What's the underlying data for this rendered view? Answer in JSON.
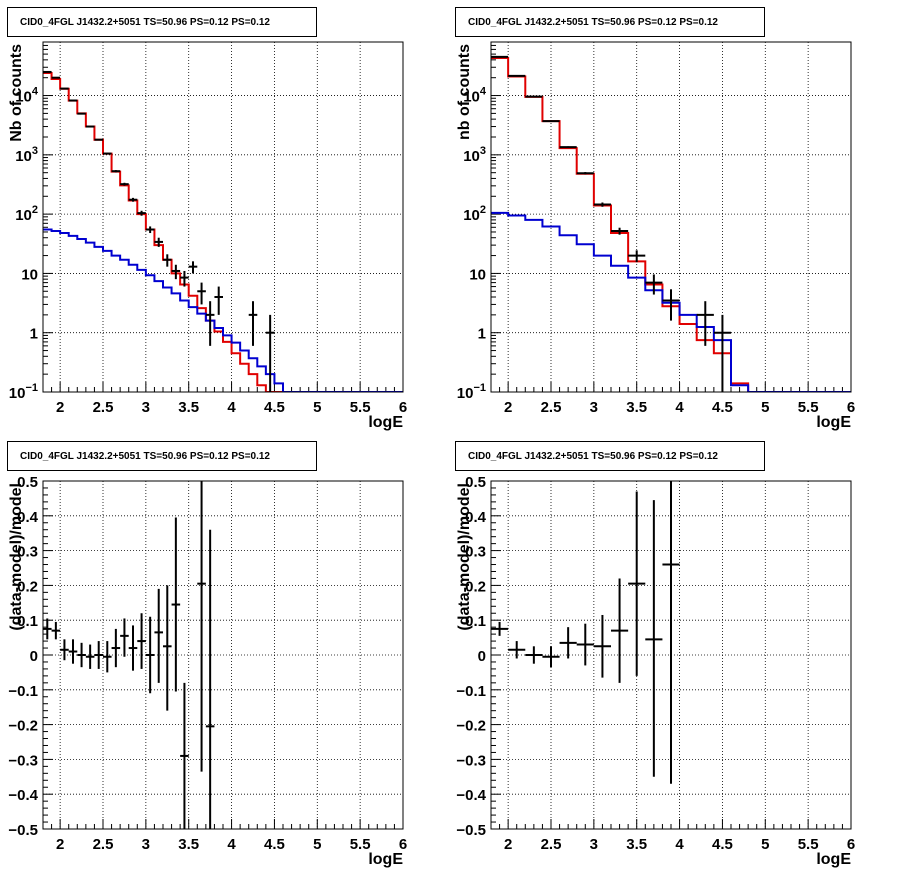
{
  "colors": {
    "data": "#000000",
    "total_model": "#e00000",
    "background_model": "#0000d0",
    "grid": "#000000"
  },
  "chart_data": [
    {
      "type": "step-histogram",
      "title": "CID0_4FGL J1432.2+5051 TS=50.96 PS=0.12 PS=0.12",
      "xlabel": "logE",
      "ylabel": "Nb of counts",
      "xlim": [
        1.8,
        6
      ],
      "ylim": [
        0.1,
        80000
      ],
      "yscale": "log",
      "grid": true,
      "x_ticks": [
        "2",
        "2.5",
        "3",
        "3.5",
        "4",
        "4.5",
        "5",
        "5.5",
        "6"
      ],
      "y_ticks": [
        "10^-1",
        "1",
        "10",
        "10^2",
        "10^3",
        "10^4"
      ],
      "bin_edges": [
        1.8,
        1.9,
        2.0,
        2.1,
        2.2,
        2.3,
        2.4,
        2.5,
        2.6,
        2.7,
        2.8,
        2.9,
        3.0,
        3.1,
        3.2,
        3.3,
        3.4,
        3.5,
        3.6,
        3.7,
        3.8,
        3.9,
        4.0,
        4.1,
        4.2,
        4.3,
        4.4,
        4.5,
        4.6,
        4.7,
        4.8,
        4.9,
        5.0,
        5.1,
        5.2,
        5.3,
        5.4,
        5.5,
        5.6,
        5.7,
        5.8,
        5.9,
        6.0
      ],
      "series": [
        {
          "name": "",
          "color": "#e00000",
          "values": [
            24000,
            19000,
            13000,
            8200,
            5000,
            3000,
            1800,
            1050,
            520,
            305,
            170,
            100,
            55,
            30,
            17,
            10,
            6.5,
            4.2,
            2.6,
            1.6,
            1.05,
            0.7,
            0.45,
            0.3,
            0.2,
            0.13,
            0.1,
            0.1,
            0.1,
            0.1,
            0.1,
            0.1,
            0.1,
            0.1,
            0.1,
            0.1,
            0.1,
            0.1,
            0.1,
            0.1,
            0.1,
            0.1
          ]
        },
        {
          "name": "",
          "color": "#0000d0",
          "values": [
            55,
            52,
            48,
            43,
            38,
            33,
            28,
            24,
            20,
            17,
            14,
            11.5,
            9.3,
            7.4,
            5.8,
            4.6,
            3.5,
            2.7,
            2.1,
            1.6,
            1.2,
            0.9,
            0.68,
            0.5,
            0.37,
            0.27,
            0.2,
            0.14,
            0.1,
            0.1,
            0.1,
            0.1,
            0.1,
            0.1,
            0.1,
            0.1,
            0.1,
            0.1,
            0.1,
            0.1,
            0.1,
            0.1
          ]
        }
      ],
      "points": [
        {
          "x": 1.85,
          "y": 25000,
          "lo": 24800,
          "hi": 25200
        },
        {
          "x": 1.95,
          "y": 20000,
          "lo": 19800,
          "hi": 20200
        },
        {
          "x": 2.05,
          "y": 13100,
          "lo": 12950,
          "hi": 13250
        },
        {
          "x": 2.15,
          "y": 8250,
          "lo": 8150,
          "hi": 8350
        },
        {
          "x": 2.25,
          "y": 4950,
          "lo": 4880,
          "hi": 5020
        },
        {
          "x": 2.35,
          "y": 3000,
          "lo": 2945,
          "hi": 3055
        },
        {
          "x": 2.45,
          "y": 1800,
          "lo": 1760,
          "hi": 1840
        },
        {
          "x": 2.55,
          "y": 1050,
          "lo": 1020,
          "hi": 1080
        },
        {
          "x": 2.65,
          "y": 530,
          "lo": 507,
          "hi": 553
        },
        {
          "x": 2.75,
          "y": 320,
          "lo": 302,
          "hi": 338
        },
        {
          "x": 2.85,
          "y": 175,
          "lo": 162,
          "hi": 188
        },
        {
          "x": 2.95,
          "y": 104,
          "lo": 94,
          "hi": 114
        },
        {
          "x": 3.05,
          "y": 55,
          "lo": 48,
          "hi": 62
        },
        {
          "x": 3.15,
          "y": 34,
          "lo": 28,
          "hi": 40
        },
        {
          "x": 3.25,
          "y": 17,
          "lo": 13,
          "hi": 21
        },
        {
          "x": 3.35,
          "y": 11,
          "lo": 8,
          "hi": 14
        },
        {
          "x": 3.45,
          "y": 8.5,
          "lo": 6,
          "hi": 11
        },
        {
          "x": 3.55,
          "y": 13,
          "lo": 10,
          "hi": 16
        },
        {
          "x": 3.65,
          "y": 5,
          "lo": 3,
          "hi": 7
        },
        {
          "x": 3.75,
          "y": 2,
          "lo": 0.6,
          "hi": 3.4
        },
        {
          "x": 3.85,
          "y": 4,
          "lo": 2,
          "hi": 6
        },
        {
          "x": 4.25,
          "y": 2,
          "lo": 0.6,
          "hi": 3.4
        },
        {
          "x": 4.45,
          "y": 1,
          "lo": 0.1,
          "hi": 2
        }
      ]
    },
    {
      "type": "step-histogram",
      "title": "CID0_4FGL J1432.2+5051 TS=50.96 PS=0.12 PS=0.12",
      "xlabel": "logE",
      "ylabel": "nb of counts",
      "xlim": [
        1.8,
        6
      ],
      "ylim": [
        0.1,
        80000
      ],
      "yscale": "log",
      "grid": true,
      "x_ticks": [
        "2",
        "2.5",
        "3",
        "3.5",
        "4",
        "4.5",
        "5",
        "5.5",
        "6"
      ],
      "y_ticks": [
        "10^-1",
        "1",
        "10",
        "10^2",
        "10^3",
        "10^4"
      ],
      "bin_edges": [
        1.8,
        2.0,
        2.2,
        2.4,
        2.6,
        2.8,
        3.0,
        3.2,
        3.4,
        3.6,
        3.8,
        4.0,
        4.2,
        4.4,
        4.6,
        4.8,
        5.0,
        5.2,
        5.4,
        5.6,
        5.8,
        6.0
      ],
      "series": [
        {
          "name": "",
          "color": "#e00000",
          "values": [
            43000,
            21000,
            9500,
            3700,
            1300,
            480,
            140,
            48,
            16,
            6.5,
            2.8,
            1.4,
            0.75,
            0.45,
            0.14,
            0.1,
            0.1,
            0.1,
            0.1,
            0.1,
            0.1
          ]
        },
        {
          "name": "",
          "color": "#0000d0",
          "values": [
            105,
            95,
            80,
            62,
            44,
            31,
            20,
            13.5,
            8.5,
            5.2,
            3.2,
            2.0,
            1.25,
            0.75,
            0.13,
            0.1,
            0.1,
            0.1,
            0.1,
            0.1,
            0.1
          ]
        }
      ],
      "points": [
        {
          "x": 1.9,
          "y": 45000,
          "lo": 44700,
          "hi": 45300
        },
        {
          "x": 2.1,
          "y": 21500,
          "lo": 21300,
          "hi": 21700
        },
        {
          "x": 2.3,
          "y": 9600,
          "lo": 9500,
          "hi": 9700
        },
        {
          "x": 2.5,
          "y": 3700,
          "lo": 3640,
          "hi": 3760
        },
        {
          "x": 2.7,
          "y": 1350,
          "lo": 1310,
          "hi": 1390
        },
        {
          "x": 2.9,
          "y": 490,
          "lo": 468,
          "hi": 512
        },
        {
          "x": 3.1,
          "y": 145,
          "lo": 133,
          "hi": 157
        },
        {
          "x": 3.3,
          "y": 52,
          "lo": 45,
          "hi": 59
        },
        {
          "x": 3.5,
          "y": 20,
          "lo": 15.5,
          "hi": 24.5
        },
        {
          "x": 3.7,
          "y": 7,
          "lo": 4.4,
          "hi": 9.6
        },
        {
          "x": 3.9,
          "y": 3.5,
          "lo": 1.6,
          "hi": 5.4
        },
        {
          "x": 4.3,
          "y": 2,
          "lo": 0.6,
          "hi": 3.4
        },
        {
          "x": 4.5,
          "y": 1,
          "lo": 0.1,
          "hi": 2
        }
      ]
    },
    {
      "type": "scatter-errorbars",
      "title": "CID0_4FGL J1432.2+5051 TS=50.96 PS=0.12 PS=0.12",
      "xlabel": "logE",
      "ylabel": "(data-model)/model",
      "xlim": [
        1.8,
        6
      ],
      "ylim": [
        -0.5,
        0.5
      ],
      "grid": true,
      "x_ticks": [
        "2",
        "2.5",
        "3",
        "3.5",
        "4",
        "4.5",
        "5",
        "5.5",
        "6"
      ],
      "y_ticks": [
        "−0.5",
        "−0.4",
        "−0.3",
        "−0.2",
        "−0.1",
        "0",
        "0.1",
        "0.2",
        "0.3",
        "0.4",
        "0.5"
      ],
      "points": [
        {
          "x": 1.85,
          "y": 0.075,
          "lo": 0.045,
          "hi": 0.105,
          "xerr": 0.05
        },
        {
          "x": 1.95,
          "y": 0.07,
          "lo": 0.045,
          "hi": 0.095,
          "xerr": 0.05
        },
        {
          "x": 2.05,
          "y": 0.015,
          "lo": -0.015,
          "hi": 0.045,
          "xerr": 0.05
        },
        {
          "x": 2.15,
          "y": 0.01,
          "lo": -0.025,
          "hi": 0.045,
          "xerr": 0.05
        },
        {
          "x": 2.25,
          "y": 0.0,
          "lo": -0.035,
          "hi": 0.035,
          "xerr": 0.05
        },
        {
          "x": 2.35,
          "y": -0.005,
          "lo": -0.04,
          "hi": 0.03,
          "xerr": 0.05
        },
        {
          "x": 2.45,
          "y": 0.0,
          "lo": -0.04,
          "hi": 0.04,
          "xerr": 0.05
        },
        {
          "x": 2.55,
          "y": -0.005,
          "lo": -0.05,
          "hi": 0.04,
          "xerr": 0.05
        },
        {
          "x": 2.65,
          "y": 0.02,
          "lo": -0.035,
          "hi": 0.075,
          "xerr": 0.05
        },
        {
          "x": 2.75,
          "y": 0.055,
          "lo": -0.005,
          "hi": 0.105,
          "xerr": 0.05
        },
        {
          "x": 2.85,
          "y": 0.02,
          "lo": -0.045,
          "hi": 0.085,
          "xerr": 0.05
        },
        {
          "x": 2.95,
          "y": 0.04,
          "lo": -0.04,
          "hi": 0.12,
          "xerr": 0.05
        },
        {
          "x": 3.05,
          "y": 0.0,
          "lo": -0.11,
          "hi": 0.11,
          "xerr": 0.05
        },
        {
          "x": 3.15,
          "y": 0.065,
          "lo": -0.08,
          "hi": 0.19,
          "xerr": 0.05
        },
        {
          "x": 3.25,
          "y": 0.025,
          "lo": -0.16,
          "hi": 0.2,
          "xerr": 0.05
        },
        {
          "x": 3.35,
          "y": 0.145,
          "lo": -0.105,
          "hi": 0.395,
          "xerr": 0.05
        },
        {
          "x": 3.45,
          "y": -0.29,
          "lo": -0.5,
          "hi": -0.08,
          "xerr": 0.05
        },
        {
          "x": 3.65,
          "y": 0.205,
          "lo": -0.335,
          "hi": 0.5,
          "xerr": 0.05
        },
        {
          "x": 3.75,
          "y": -0.205,
          "lo": -0.5,
          "hi": 0.36,
          "xerr": 0.05
        }
      ]
    },
    {
      "type": "scatter-errorbars",
      "title": "CID0_4FGL J1432.2+5051 TS=50.96 PS=0.12 PS=0.12",
      "xlabel": "logE",
      "ylabel": "(data-model)/model",
      "xlim": [
        1.8,
        6
      ],
      "ylim": [
        -0.5,
        0.5
      ],
      "grid": true,
      "x_ticks": [
        "2",
        "2.5",
        "3",
        "3.5",
        "4",
        "4.5",
        "5",
        "5.5",
        "6"
      ],
      "y_ticks": [
        "−0.5",
        "−0.4",
        "−0.3",
        "−0.2",
        "−0.1",
        "0",
        "0.1",
        "0.2",
        "0.3",
        "0.4",
        "0.5"
      ],
      "points": [
        {
          "x": 1.9,
          "y": 0.075,
          "lo": 0.055,
          "hi": 0.095,
          "xerr": 0.1
        },
        {
          "x": 2.1,
          "y": 0.015,
          "lo": -0.01,
          "hi": 0.04,
          "xerr": 0.1
        },
        {
          "x": 2.3,
          "y": 0.0,
          "lo": -0.025,
          "hi": 0.025,
          "xerr": 0.1
        },
        {
          "x": 2.5,
          "y": -0.005,
          "lo": -0.035,
          "hi": 0.025,
          "xerr": 0.1
        },
        {
          "x": 2.7,
          "y": 0.035,
          "lo": -0.01,
          "hi": 0.08,
          "xerr": 0.1
        },
        {
          "x": 2.9,
          "y": 0.03,
          "lo": -0.03,
          "hi": 0.09,
          "xerr": 0.1
        },
        {
          "x": 3.1,
          "y": 0.025,
          "lo": -0.065,
          "hi": 0.115,
          "xerr": 0.1
        },
        {
          "x": 3.3,
          "y": 0.07,
          "lo": -0.08,
          "hi": 0.22,
          "xerr": 0.1
        },
        {
          "x": 3.5,
          "y": 0.205,
          "lo": -0.06,
          "hi": 0.47,
          "xerr": 0.1
        },
        {
          "x": 3.7,
          "y": 0.045,
          "lo": -0.35,
          "hi": 0.445,
          "xerr": 0.1
        },
        {
          "x": 3.9,
          "y": 0.26,
          "lo": -0.37,
          "hi": 0.5,
          "xerr": 0.1
        }
      ]
    }
  ]
}
